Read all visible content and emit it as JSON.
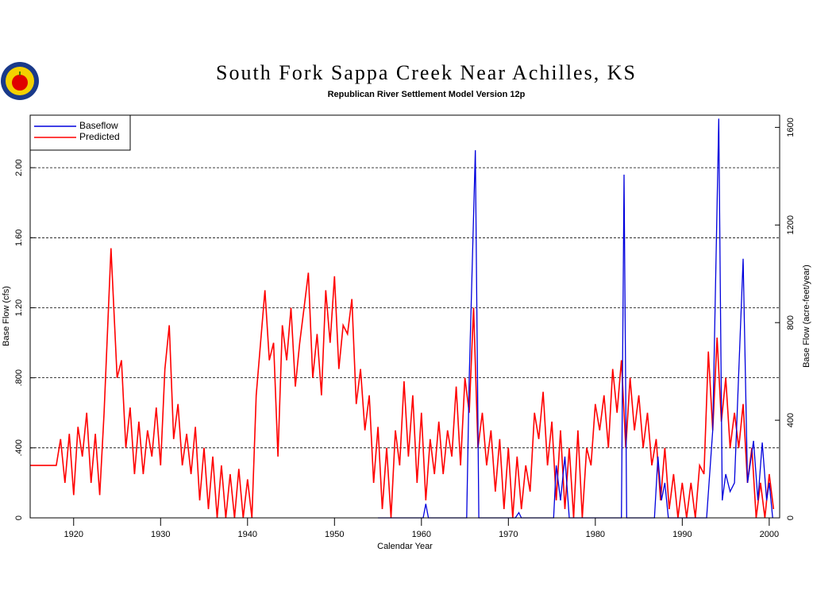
{
  "chart_data": {
    "type": "line",
    "title": "South Fork Sappa Creek Near Achilles, KS",
    "subtitle": "Republican River Settlement Model Version 12p",
    "x_label": "Calendar Year",
    "y_label": "Base Flow (cfs)",
    "y2_label": "Base Flow (acre-feet/year)",
    "xlim": [
      1915,
      2001.2
    ],
    "xticks": [
      1920,
      1930,
      1940,
      1950,
      1960,
      1970,
      1980,
      1990,
      2000
    ],
    "ylim": [
      0,
      2.3
    ],
    "yticks": [
      0,
      {
        "value": 0.4,
        "label": ".400"
      },
      {
        "value": 0.8,
        "label": ".800"
      },
      {
        "value": 1.2,
        "label": "1.20"
      },
      {
        "value": 1.6,
        "label": "1.60"
      },
      {
        "value": 2.0,
        "label": "2.00"
      }
    ],
    "y2lim": [
      0,
      1650
    ],
    "y2ticks": [
      0,
      400,
      800,
      1200,
      1600
    ],
    "grid": true,
    "legend": "upper left",
    "series": [
      {
        "name": "Baseflow",
        "color": "#0000dd",
        "x": [
          1955,
          1960.2,
          1960.5,
          1960.8,
          1965.2,
          1965.5,
          1966.2,
          1966.6,
          1970.8,
          1971.2,
          1971.5,
          1975.2,
          1975.5,
          1976.0,
          1976.5,
          1977.0,
          1983.0,
          1983.3,
          1983.6,
          1986.8,
          1987.2,
          1987.6,
          1988.0,
          1988.4,
          1989.0,
          1992.8,
          1993.5,
          1994.2,
          1994.6,
          1995.0,
          1995.5,
          1996.0,
          1997.0,
          1997.5,
          1998.2,
          1998.7,
          1999.2,
          1999.7,
          2000.0,
          2000.4
        ],
        "values": [
          0,
          0,
          0.08,
          0,
          0,
          0.8,
          2.1,
          0,
          0,
          0.03,
          0,
          0,
          0.3,
          0.1,
          0.35,
          0,
          0,
          1.96,
          0,
          0,
          0.35,
          0.1,
          0.2,
          0,
          0,
          0,
          0.5,
          2.28,
          0.1,
          0.25,
          0.15,
          0.2,
          1.48,
          0.2,
          0.44,
          0.1,
          0.43,
          0.1,
          0.2,
          0
        ]
      },
      {
        "name": "Predicted",
        "color": "#ff0000",
        "x": [
          1915,
          1918,
          1918.5,
          1919,
          1919.5,
          1920,
          1920.5,
          1921,
          1921.5,
          1922,
          1922.5,
          1923,
          1923.5,
          1924.3,
          1925,
          1925.5,
          1926,
          1926.5,
          1927,
          1927.5,
          1928,
          1928.5,
          1929,
          1929.5,
          1930,
          1930.5,
          1931,
          1931.5,
          1932,
          1932.5,
          1933,
          1933.5,
          1934,
          1934.5,
          1935,
          1935.5,
          1936,
          1936.5,
          1937,
          1937.5,
          1938,
          1938.5,
          1939,
          1939.5,
          1940,
          1940.5,
          1941,
          1941.5,
          1942,
          1942.5,
          1943,
          1943.5,
          1944,
          1944.5,
          1945,
          1945.5,
          1946,
          1946.5,
          1947,
          1947.5,
          1948,
          1948.5,
          1949,
          1949.5,
          1950,
          1950.5,
          1951,
          1951.5,
          1952,
          1952.5,
          1953,
          1953.5,
          1954,
          1954.5,
          1955,
          1955.5,
          1956,
          1956.5,
          1957,
          1957.5,
          1958,
          1958.5,
          1959,
          1959.5,
          1960,
          1960.5,
          1961,
          1961.5,
          1962,
          1962.5,
          1963,
          1963.5,
          1964,
          1964.5,
          1965,
          1965.5,
          1966,
          1966.5,
          1967,
          1967.5,
          1968,
          1968.5,
          1969,
          1969.5,
          1970,
          1970.5,
          1971,
          1971.5,
          1972,
          1972.5,
          1973,
          1973.5,
          1974,
          1974.5,
          1975,
          1975.5,
          1976,
          1976.5,
          1977,
          1977.5,
          1978,
          1978.5,
          1979,
          1979.5,
          1980,
          1980.5,
          1981,
          1981.5,
          1982,
          1982.5,
          1983,
          1983.5,
          1984,
          1984.5,
          1985,
          1985.5,
          1986,
          1986.5,
          1987,
          1987.5,
          1988,
          1988.5,
          1989,
          1989.5,
          1990,
          1990.5,
          1991,
          1991.5,
          1992,
          1992.5,
          1993,
          1993.5,
          1994,
          1994.5,
          1995,
          1995.5,
          1996,
          1996.5,
          1997,
          1997.5,
          1998,
          1998.5,
          1999,
          1999.5,
          2000,
          2000.5
        ],
        "values": [
          0.3,
          0.3,
          0.45,
          0.2,
          0.48,
          0.13,
          0.52,
          0.35,
          0.6,
          0.2,
          0.48,
          0.13,
          0.6,
          1.54,
          0.8,
          0.9,
          0.4,
          0.63,
          0.25,
          0.55,
          0.25,
          0.5,
          0.35,
          0.63,
          0.3,
          0.85,
          1.1,
          0.45,
          0.65,
          0.3,
          0.48,
          0.25,
          0.52,
          0.1,
          0.4,
          0.05,
          0.35,
          0,
          0.3,
          0,
          0.25,
          0,
          0.28,
          0,
          0.22,
          0,
          0.7,
          1.0,
          1.3,
          0.9,
          1.0,
          0.35,
          1.1,
          0.9,
          1.2,
          0.75,
          1.0,
          1.2,
          1.4,
          0.8,
          1.05,
          0.7,
          1.3,
          1.0,
          1.38,
          0.85,
          1.1,
          1.05,
          1.25,
          0.65,
          0.85,
          0.5,
          0.7,
          0.2,
          0.52,
          0.05,
          0.4,
          0,
          0.5,
          0.3,
          0.78,
          0.35,
          0.7,
          0.2,
          0.6,
          0.1,
          0.45,
          0.25,
          0.55,
          0.25,
          0.5,
          0.35,
          0.75,
          0.3,
          0.8,
          0.6,
          1.2,
          0.4,
          0.6,
          0.3,
          0.5,
          0.15,
          0.45,
          0.05,
          0.4,
          0,
          0.35,
          0.05,
          0.3,
          0.15,
          0.6,
          0.45,
          0.72,
          0.3,
          0.55,
          0.1,
          0.5,
          0.05,
          0.4,
          0,
          0.5,
          0,
          0.4,
          0.3,
          0.65,
          0.5,
          0.7,
          0.4,
          0.85,
          0.6,
          0.9,
          0.4,
          0.8,
          0.5,
          0.7,
          0.4,
          0.6,
          0.3,
          0.45,
          0.1,
          0.4,
          0.05,
          0.25,
          0,
          0.2,
          0,
          0.2,
          0,
          0.3,
          0.25,
          0.95,
          0.5,
          1.03,
          0.55,
          0.8,
          0.4,
          0.6,
          0.4,
          0.65,
          0.2,
          0.4,
          0,
          0.2,
          0,
          0.25,
          0.05
        ]
      }
    ]
  }
}
